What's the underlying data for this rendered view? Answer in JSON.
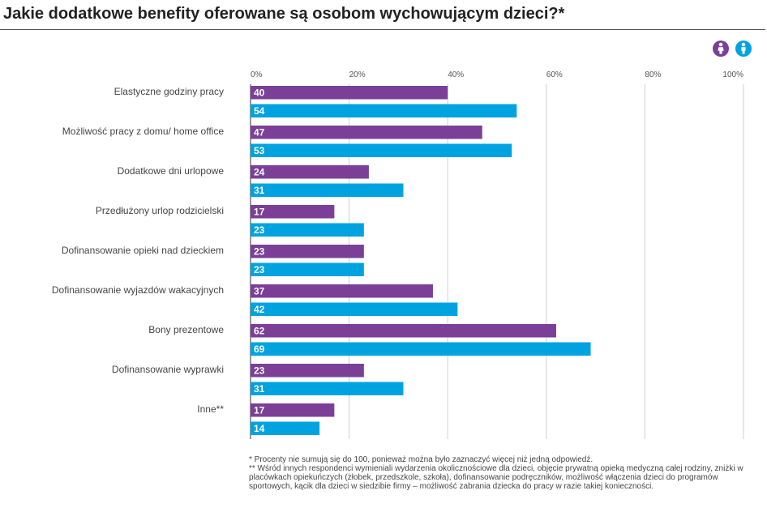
{
  "title": "Jakie dodatkowe benefity oferowane są osobom wychowującym dzieci?*",
  "legend": [
    {
      "icon": "woman-icon",
      "color": "#7b3f98"
    },
    {
      "icon": "man-icon",
      "color": "#00a3e0"
    }
  ],
  "footnotes": [
    "* Procenty nie sumują się do 100, ponieważ można było zaznaczyć więcej niż jedną odpowiedź.",
    "** Wśród innych respondenci wymieniali wydarzenia okolicznościowe dla dzieci, objęcie prywatną opieką medyczną całej rodziny, zniżki w placówkach opiekuńczych (żłobek, przedszkole, szkoła), dofinansowanie podręczników, możliwość włączenia dzieci do programów sportowych, kącik dla dzieci w siedzibie firmy – możliwość zabrania dziecka do pracy w razie takiej konieczności."
  ],
  "chart_data": {
    "type": "bar",
    "orientation": "horizontal",
    "title": "Jakie dodatkowe benefity oferowane są osobom wychowującym dzieci?*",
    "categories": [
      "Elastyczne godziny pracy",
      "Możliwość pracy z domu/ home office",
      "Dodatkowe dni urlopowe",
      "Przedłużony urlop rodzicielski",
      "Dofinansowanie opieki nad dzieckiem",
      "Dofinansowanie wyjazdów wakacyjnych",
      "Bony prezentowe",
      "Dofinansowanie wyprawki",
      "Inne**"
    ],
    "series": [
      {
        "color": "#7b3f98",
        "values": [
          40,
          47,
          24,
          17,
          23,
          37,
          62,
          23,
          17
        ]
      },
      {
        "color": "#00a3e0",
        "values": [
          54,
          53,
          31,
          23,
          23,
          42,
          69,
          31,
          14
        ]
      }
    ],
    "xlim": [
      0,
      100
    ],
    "ticks": [
      "0%",
      "20%",
      "40%",
      "60%",
      "80%",
      "100%"
    ],
    "tick_values": [
      0,
      20,
      40,
      60,
      80,
      100
    ],
    "grid": true,
    "legend_position": "top-right"
  }
}
